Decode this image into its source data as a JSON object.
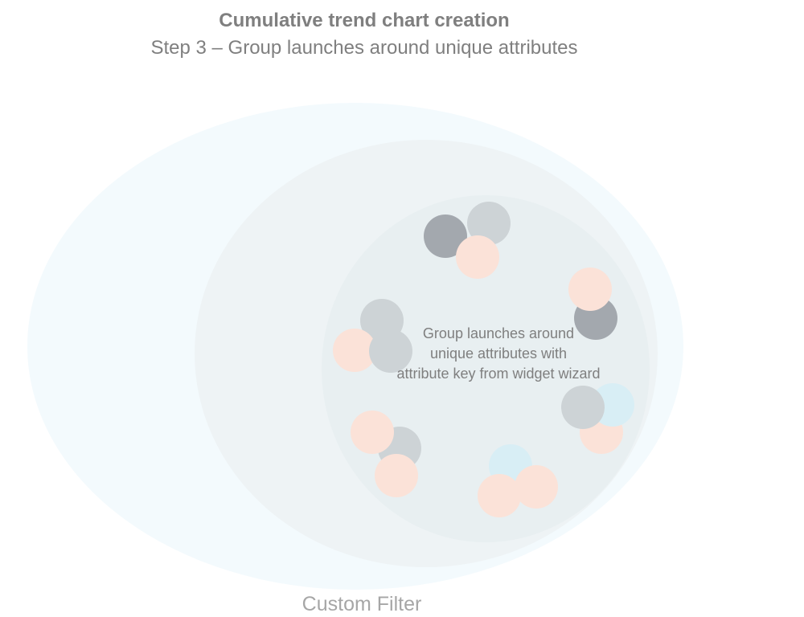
{
  "header": {
    "title": "Cumulative trend chart creation",
    "subtitle": "Step 3 – Group launches around unique attributes"
  },
  "diagram": {
    "outer_label": "Custom Filter",
    "center_label": "Group launches around\nunique attributes with\nattribute key from widget wizard",
    "colors": {
      "outer": "#f3fafd",
      "middle": "#eef3f5",
      "inner": "#e8eff1",
      "dot_dark": "#a3a8ae",
      "dot_gray": "#cdd3d6",
      "dot_peach": "#fbe2d8",
      "dot_blue": "#d8eef5"
    }
  }
}
